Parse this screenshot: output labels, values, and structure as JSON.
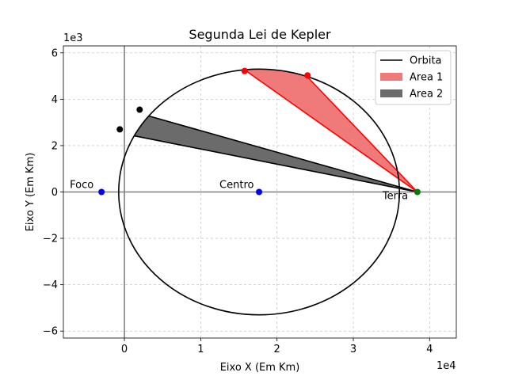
{
  "chart_data": {
    "type": "line",
    "title": "Segunda Lei de Kepler",
    "xlabel": "Eixo X (Em Km)",
    "ylabel": "Eixo Y (Em Km)",
    "x_offset_label": "1e4",
    "y_offset_label": "1e3",
    "xlim": [
      -0.8,
      4.35
    ],
    "ylim": [
      -6.3,
      6.3
    ],
    "x_ticks": [
      0,
      1,
      2,
      3,
      4
    ],
    "y_ticks": [
      -6,
      -4,
      -2,
      0,
      2,
      4,
      6
    ],
    "x_tick_labels": [
      "0",
      "1",
      "2",
      "3",
      "4"
    ],
    "y_tick_labels": [
      "−6",
      "−4",
      "−2",
      "0",
      "2",
      "4",
      "6"
    ],
    "grid": true,
    "legend_position": "top-right",
    "ellipse": {
      "center": [
        1.765,
        0
      ],
      "a": 1.84,
      "b": 5.3
    },
    "series": [
      {
        "name": "Orbita",
        "kind": "line",
        "color": "#000000"
      },
      {
        "name": "Area 1",
        "kind": "fill",
        "color": "#f07a7a",
        "edge": "#ff0000",
        "arc_from_x": 1.575,
        "arc_to_x": 2.4,
        "arc_from_y": 5.22,
        "arc_to_y": 5.03
      },
      {
        "name": "Area 2",
        "kind": "fill",
        "color": "#6b6b6b",
        "edge": "#000000",
        "arc_from_x": -0.06,
        "arc_to_x": 0.2,
        "arc_from_y": 2.7,
        "arc_to_y": 3.55
      }
    ],
    "points": [
      {
        "x": 1.575,
        "y": 5.22,
        "color": "#ff0000"
      },
      {
        "x": 2.4,
        "y": 5.03,
        "color": "#ff0000"
      },
      {
        "x": -0.06,
        "y": 2.7,
        "color": "#000000"
      },
      {
        "x": 0.2,
        "y": 3.55,
        "color": "#000000"
      },
      {
        "x": -0.3,
        "y": 0,
        "color": "#0000ff"
      },
      {
        "x": 1.765,
        "y": 0,
        "color": "#0000ff"
      },
      {
        "x": 3.84,
        "y": 0,
        "color": "#008000"
      }
    ],
    "earth": [
      3.84,
      0
    ],
    "annotations": [
      {
        "text": "Foco",
        "x": -0.3,
        "y": 0
      },
      {
        "text": "Centro",
        "x": 1.765,
        "y": 0
      },
      {
        "text": "Terra",
        "x": 3.84,
        "y": 0
      }
    ]
  }
}
